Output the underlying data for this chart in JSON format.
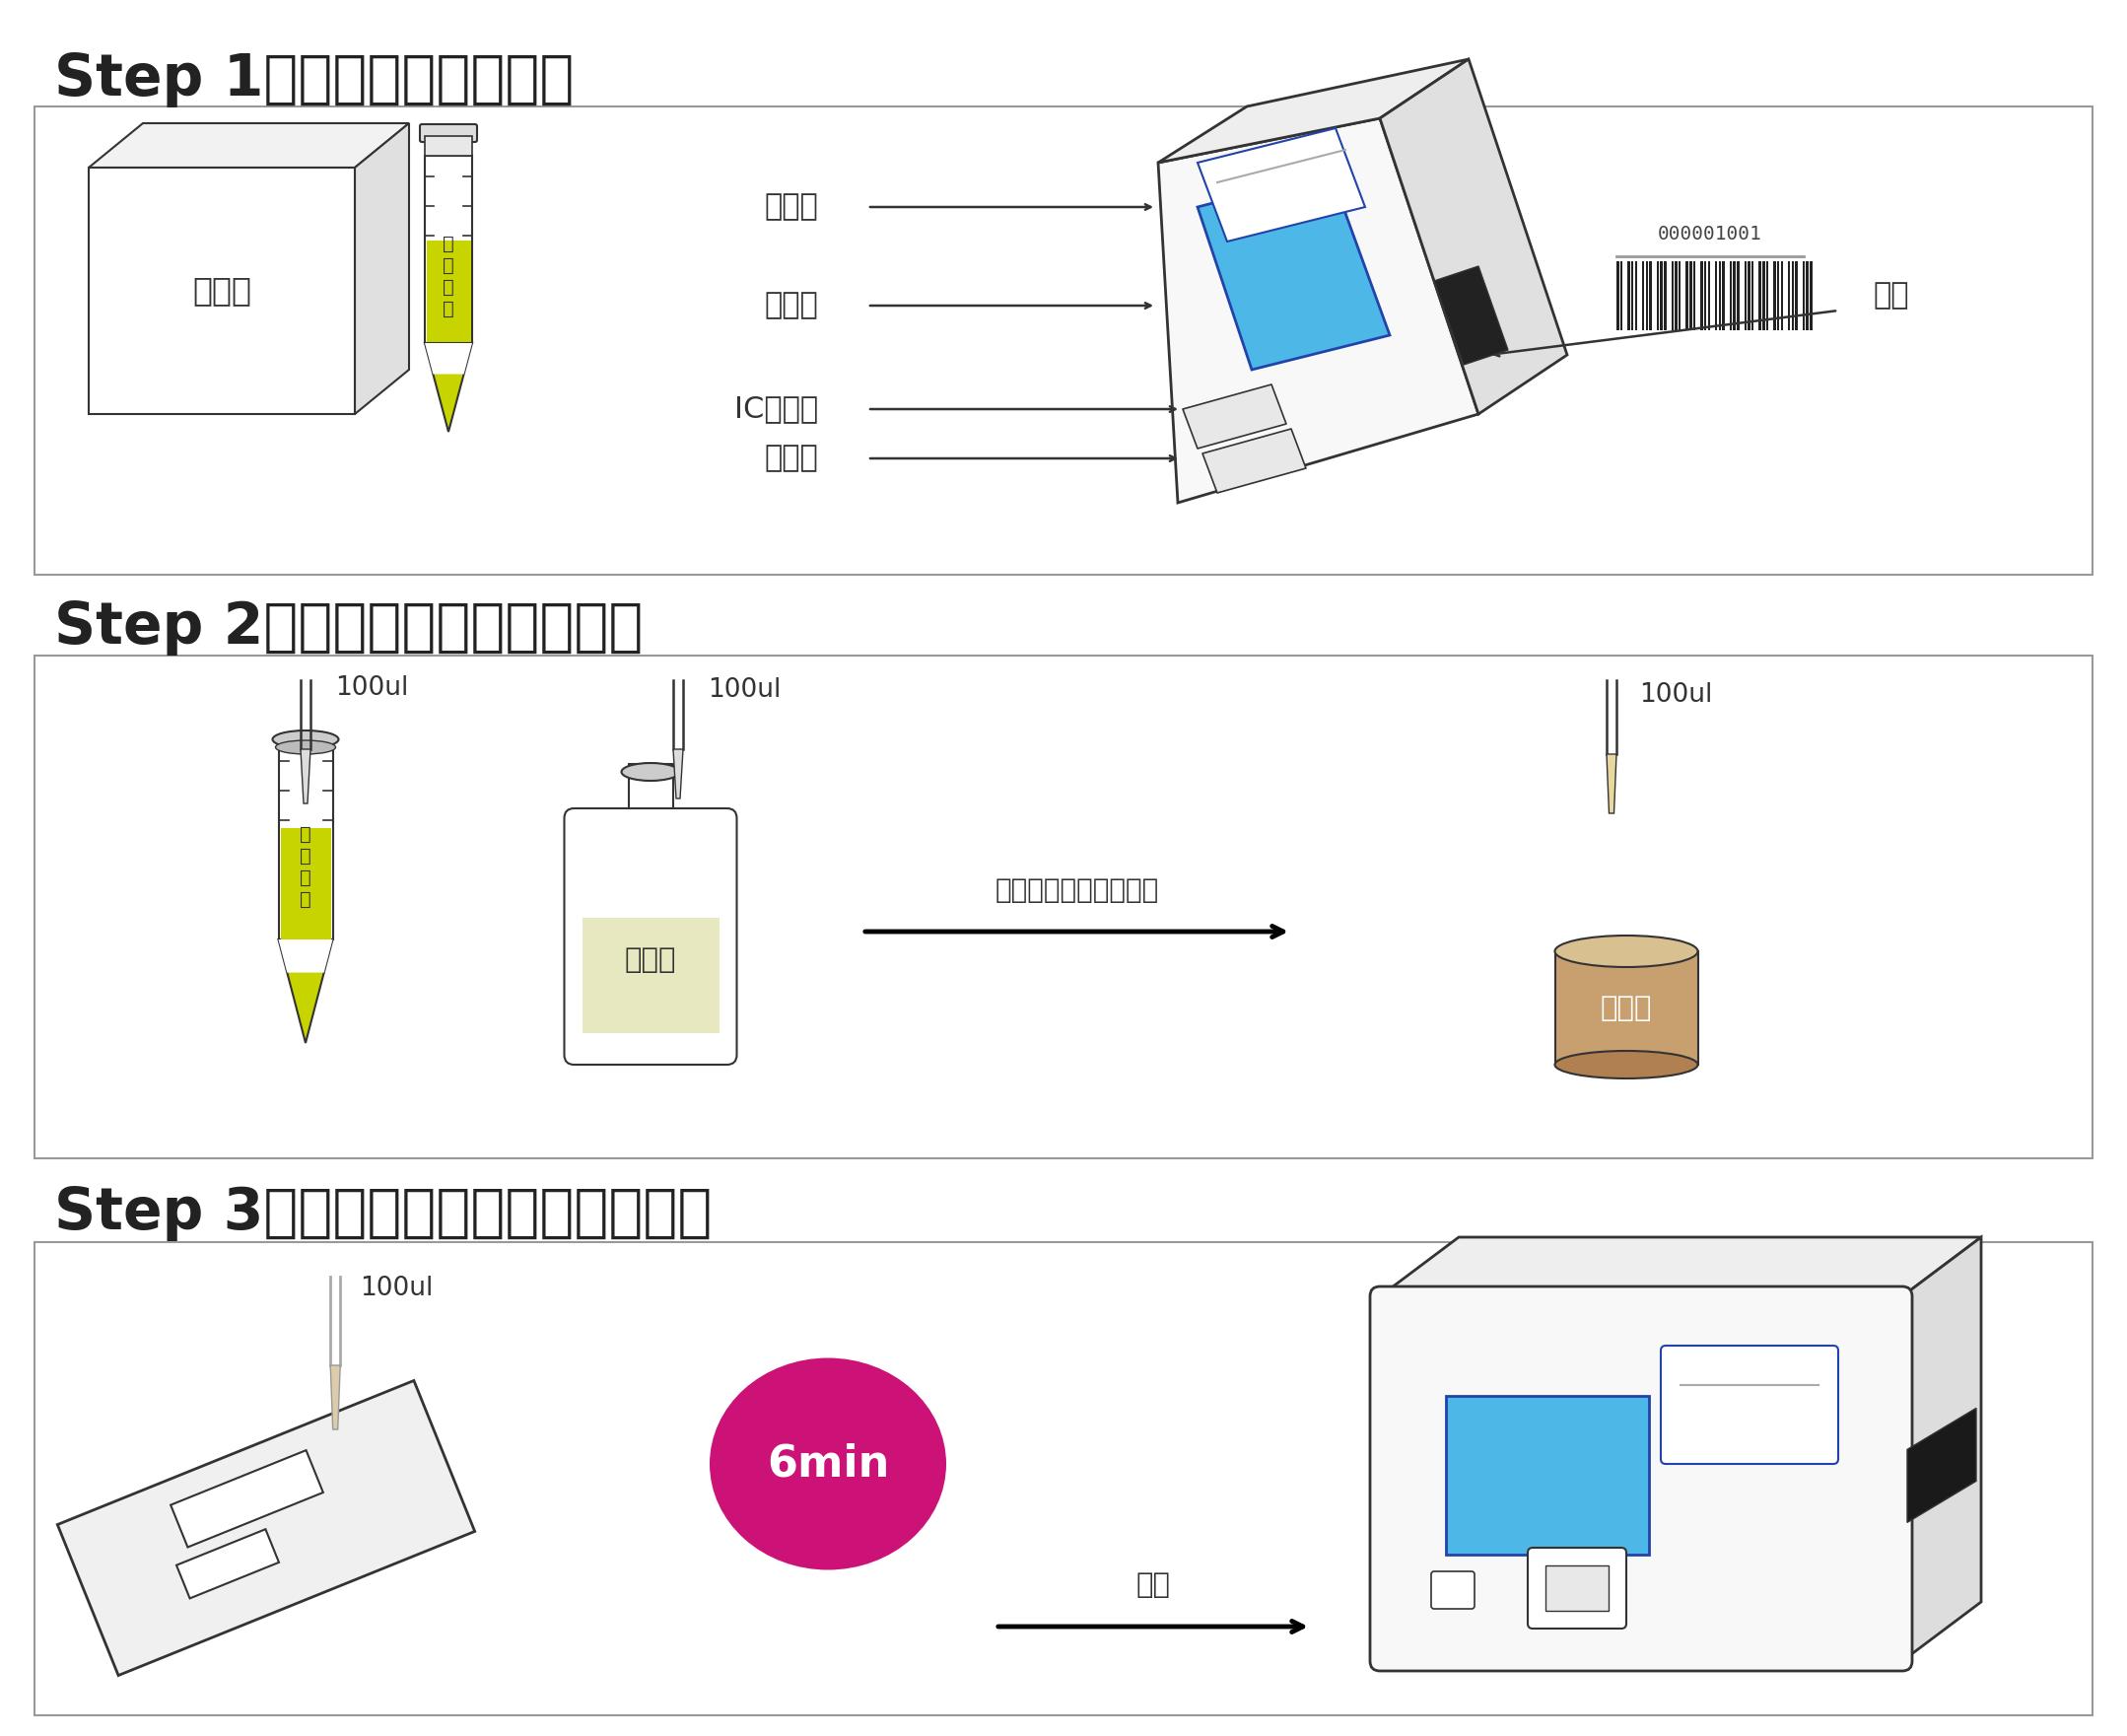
{
  "bg_color": "#ffffff",
  "step1_title": "Step 1：回温、开机、扫码",
  "step2_title": "Step 2：取样、加稀释液，混匀",
  "step3_title": "Step 3：加样，读数，打印检测报告",
  "step1_labels": {
    "printer": "打印机",
    "screen": "显示屏",
    "ic_slot": "IC卡插口",
    "card_slot": "插卡口",
    "scan": "扫码",
    "reagent_box": "试剂盒",
    "sample": "待\n检\n样\n品",
    "barcode_num": "000001001"
  },
  "step2_labels": {
    "vol1": "100ul",
    "vol2": "100ul",
    "vol3": "100ul",
    "diluent": "稀释液",
    "sample_tube": "待\n检\n样\n品",
    "arrow_label": "加入样品杯，吸打混匀",
    "cup_label": "样品杯"
  },
  "step3_labels": {
    "vol": "100ul",
    "time": "6min",
    "arrow_label": "读数"
  },
  "colors": {
    "blue_screen": "#4db8e8",
    "blue_border": "#2244aa",
    "yellow_green": "#c8d400",
    "light_yellow": "#e8e8b0",
    "pink": "#cc1177",
    "tan_top": "#d8c090",
    "tan_body": "#c8a070",
    "tan_bot": "#b08050",
    "outline": "#333333",
    "dark": "#222222",
    "title_color": "#333333",
    "device_face": "#f8f8f8",
    "device_top": "#eeeeee",
    "device_right": "#dddddd"
  }
}
